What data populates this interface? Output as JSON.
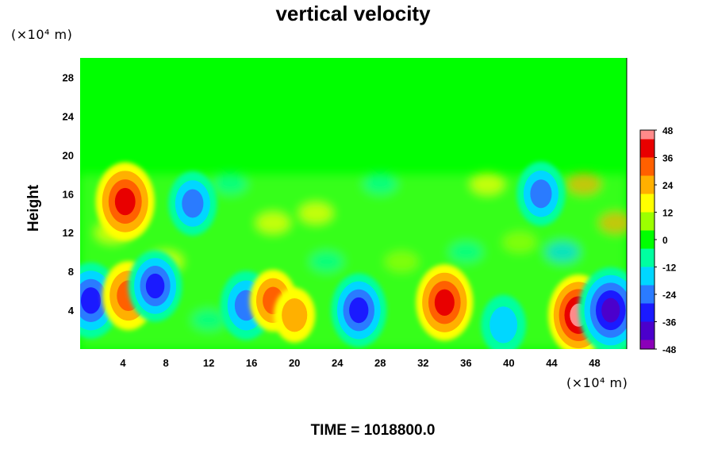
{
  "title": "vertical velocity",
  "y_unit": "(×10⁴ m)",
  "x_unit": "(×10⁴ m)",
  "footer": "TIME = 1018800.0",
  "chart_data": {
    "type": "heatmap",
    "title": "vertical velocity",
    "ylabel": "Height",
    "xlabel": "",
    "x_ticks": [
      4,
      8,
      12,
      16,
      20,
      24,
      28,
      32,
      36,
      40,
      44,
      48
    ],
    "y_ticks": [
      4,
      8,
      12,
      16,
      20,
      24,
      28
    ],
    "xlim": [
      0,
      51
    ],
    "ylim": [
      0,
      30
    ],
    "colorbar_ticks": [
      48,
      36,
      24,
      12,
      0,
      -12,
      -24,
      -36,
      -48
    ],
    "colorbar_range": [
      -48,
      48
    ],
    "colormap": [
      "#8b00b8",
      "#4b00cc",
      "#1a1aff",
      "#2a7bff",
      "#00d7ff",
      "#00ffa0",
      "#00ff00",
      "#9cff00",
      "#ffff00",
      "#ffb000",
      "#ff6000",
      "#e80000",
      "#ff8a8a"
    ],
    "background_value": 0,
    "features": [
      {
        "x": 1.0,
        "y": 5.0,
        "value": -40
      },
      {
        "x": 4.5,
        "y": 5.5,
        "value": 34
      },
      {
        "x": 4.2,
        "y": 15.2,
        "value": 42
      },
      {
        "x": 7.0,
        "y": 6.5,
        "value": -36
      },
      {
        "x": 10.5,
        "y": 15.0,
        "value": -30
      },
      {
        "x": 15.5,
        "y": 4.5,
        "value": -34
      },
      {
        "x": 18.0,
        "y": 5.0,
        "value": 28
      },
      {
        "x": 20.0,
        "y": 3.5,
        "value": 22
      },
      {
        "x": 26.0,
        "y": 4.0,
        "value": -38
      },
      {
        "x": 34.0,
        "y": 4.8,
        "value": 40
      },
      {
        "x": 39.5,
        "y": 2.5,
        "value": -26
      },
      {
        "x": 43.0,
        "y": 16.0,
        "value": -30
      },
      {
        "x": 46.5,
        "y": 3.5,
        "value": 44
      },
      {
        "x": 49.5,
        "y": 4.0,
        "value": -48
      }
    ]
  }
}
